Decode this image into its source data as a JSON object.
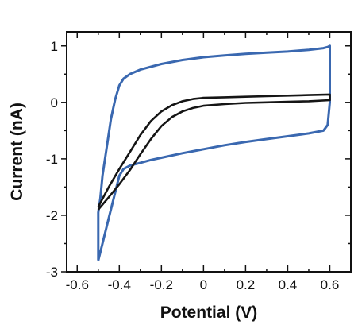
{
  "chart_data": {
    "type": "line",
    "title": "",
    "xlabel": "Potential (V)",
    "ylabel": "Current (nA)",
    "xlim": [
      -0.65,
      0.7
    ],
    "ylim": [
      -3,
      1.25
    ],
    "x_ticks": [
      -0.6,
      -0.4,
      -0.2,
      0,
      0.2,
      0.4,
      0.6
    ],
    "x_tick_labels": [
      "-0.6",
      "-0.4",
      "-0.2",
      "0",
      "0.2",
      "0.4",
      "0.6"
    ],
    "y_ticks": [
      -3,
      -2,
      -1,
      0,
      1
    ],
    "y_tick_labels": [
      "-3",
      "-2",
      "-1",
      "0",
      "1"
    ],
    "grid": false,
    "legend": "none",
    "series": [
      {
        "color": "#3a68b0",
        "x": [
          -0.5,
          -0.48,
          -0.45,
          -0.42,
          -0.4,
          -0.38,
          -0.35,
          -0.32,
          -0.3,
          -0.25,
          -0.2,
          -0.1,
          0,
          0.1,
          0.2,
          0.3,
          0.4,
          0.5,
          0.57,
          0.59,
          0.6,
          0.6,
          0.6,
          0.6,
          0.59,
          0.57,
          0.5,
          0.4,
          0.3,
          0.2,
          0.1,
          0,
          -0.1,
          -0.2,
          -0.3,
          -0.35,
          -0.38,
          -0.4,
          -0.42,
          -0.44,
          -0.46,
          -0.48,
          -0.49,
          -0.5,
          -0.5
        ],
        "y": [
          -2.8,
          -2.5,
          -2.05,
          -1.6,
          -1.3,
          -1.18,
          -1.12,
          -1.09,
          -1.07,
          -1.02,
          -0.98,
          -0.9,
          -0.83,
          -0.76,
          -0.7,
          -0.65,
          -0.6,
          -0.55,
          -0.5,
          -0.4,
          0,
          0.5,
          0.9,
          1.0,
          0.98,
          0.96,
          0.93,
          0.9,
          0.88,
          0.86,
          0.83,
          0.8,
          0.75,
          0.68,
          0.58,
          0.5,
          0.42,
          0.3,
          0.05,
          -0.3,
          -0.8,
          -1.3,
          -1.7,
          -1.95,
          -2.8
        ]
      },
      {
        "color": "#151515",
        "x": [
          -0.5,
          -0.45,
          -0.4,
          -0.35,
          -0.3,
          -0.25,
          -0.2,
          -0.15,
          -0.1,
          -0.05,
          0,
          0.1,
          0.2,
          0.3,
          0.4,
          0.5,
          0.6,
          0.6,
          0.5,
          0.4,
          0.3,
          0.2,
          0.1,
          0,
          -0.05,
          -0.1,
          -0.15,
          -0.2,
          -0.25,
          -0.3,
          -0.35,
          -0.4,
          -0.45,
          -0.5
        ],
        "y": [
          -1.9,
          -1.68,
          -1.45,
          -1.2,
          -0.92,
          -0.65,
          -0.42,
          -0.26,
          -0.16,
          -0.1,
          -0.06,
          -0.03,
          -0.01,
          0,
          0.01,
          0.02,
          0.04,
          0.14,
          0.13,
          0.12,
          0.11,
          0.1,
          0.09,
          0.08,
          0.06,
          0.02,
          -0.05,
          -0.16,
          -0.33,
          -0.58,
          -0.88,
          -1.18,
          -1.5,
          -1.85
        ]
      }
    ]
  }
}
